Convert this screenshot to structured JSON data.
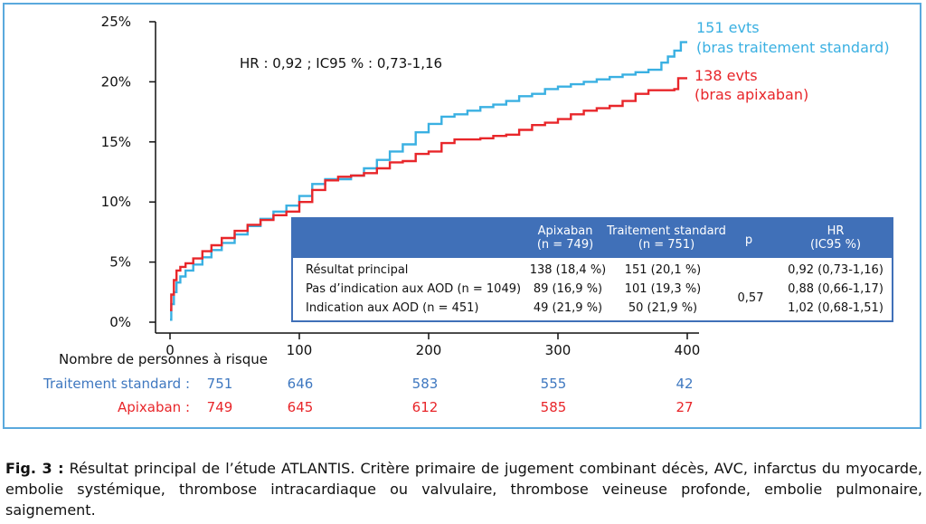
{
  "chart_data": {
    "type": "line",
    "x_range": [
      0,
      400
    ],
    "y_range": [
      0,
      25
    ],
    "y_ticks": [
      "0%",
      "5%",
      "10%",
      "15%",
      "20%",
      "25%"
    ],
    "y_tick_values": [
      0,
      5,
      10,
      15,
      20,
      25
    ],
    "x_ticks": [
      "0",
      "100",
      "200",
      "300",
      "400"
    ],
    "x_tick_values": [
      0,
      100,
      200,
      300,
      400
    ],
    "annotation": "HR : 0,92 ; IC95 % : 0,73-1,16",
    "colors": {
      "standard": "#3ab0e2",
      "apixaban": "#e8262a",
      "table_header": "#4070b8",
      "risk_standard": "#3f78c0"
    },
    "series": [
      {
        "key": "standard",
        "label_line1": "151 evts",
        "label_line2": "(bras traitement standard)",
        "x": [
          0,
          1,
          3,
          5,
          8,
          12,
          18,
          25,
          32,
          40,
          50,
          60,
          70,
          80,
          90,
          100,
          110,
          120,
          130,
          140,
          150,
          160,
          170,
          180,
          190,
          200,
          210,
          220,
          230,
          240,
          250,
          260,
          270,
          280,
          290,
          300,
          310,
          320,
          330,
          340,
          350,
          360,
          370,
          380,
          385,
          390,
          395,
          400
        ],
        "y": [
          0.2,
          1.5,
          2.5,
          3.3,
          3.8,
          4.3,
          4.8,
          5.4,
          6.0,
          6.6,
          7.3,
          8.0,
          8.6,
          9.2,
          9.7,
          10.5,
          11.5,
          11.9,
          11.9,
          12.2,
          12.8,
          13.5,
          14.2,
          14.8,
          15.8,
          16.5,
          17.1,
          17.3,
          17.6,
          17.9,
          18.1,
          18.4,
          18.8,
          19.0,
          19.4,
          19.6,
          19.8,
          20.0,
          20.2,
          20.4,
          20.6,
          20.8,
          21.0,
          21.6,
          22.1,
          22.6,
          23.3,
          23.3
        ]
      },
      {
        "key": "apixaban",
        "label_line1": "138 evts",
        "label_line2": "(bras apixaban)",
        "x": [
          0,
          1,
          3,
          5,
          8,
          12,
          18,
          25,
          32,
          40,
          50,
          60,
          70,
          80,
          90,
          100,
          110,
          120,
          130,
          140,
          150,
          160,
          170,
          180,
          190,
          200,
          210,
          220,
          230,
          240,
          250,
          260,
          270,
          280,
          290,
          300,
          310,
          320,
          330,
          340,
          350,
          360,
          370,
          380,
          390,
          393,
          396,
          400
        ],
        "y": [
          1.0,
          2.3,
          3.5,
          4.3,
          4.6,
          4.9,
          5.3,
          5.9,
          6.4,
          7.0,
          7.6,
          8.1,
          8.5,
          8.9,
          9.2,
          10.0,
          11.0,
          11.8,
          12.1,
          12.2,
          12.4,
          12.8,
          13.3,
          13.4,
          14.0,
          14.2,
          14.9,
          15.2,
          15.2,
          15.3,
          15.5,
          15.6,
          16.0,
          16.4,
          16.6,
          16.9,
          17.3,
          17.6,
          17.8,
          18.0,
          18.4,
          19.0,
          19.3,
          19.3,
          19.4,
          20.3,
          20.3,
          20.3
        ]
      }
    ]
  },
  "table": {
    "headers": {
      "apixaban_l1": "Apixaban",
      "apixaban_l2": "(n = 749)",
      "standard_l1": "Traitement standard",
      "standard_l2": "(n = 751)",
      "p": "p",
      "hr_l1": "HR",
      "hr_l2": "(IC95 %)"
    },
    "rows": [
      {
        "label": "Résultat principal",
        "apixaban": "138 (18,4 %)",
        "standard": "151 (20,1 %)",
        "hr": "0,92 (0,73-1,16)"
      },
      {
        "label": "Pas d’indication aux AOD (n = 1049)",
        "apixaban": "89 (16,9 %)",
        "standard": "101 (19,3 %)",
        "hr": "0,88 (0,66-1,17)"
      },
      {
        "label": "Indication aux AOD (n = 451)",
        "apixaban": "49 (21,9 %)",
        "standard": "50 (21,9 %)",
        "hr": "1,02 (0,68-1,51)"
      }
    ],
    "p_value": "0,57"
  },
  "risk": {
    "title": "Nombre de personnes à risque",
    "standard_label": "Traitement standard :",
    "standard_values": [
      "751",
      "646",
      "583",
      "555",
      "42"
    ],
    "apixaban_label": "Apixaban :",
    "apixaban_values": [
      "749",
      "645",
      "612",
      "585",
      "27"
    ]
  },
  "caption": {
    "fig": "Fig. 3 :",
    "text": "Résultat principal de l’étude ATLANTIS. Critère primaire de jugement combinant décès, AVC, infarctus du myocarde, embolie systémique, thrombose intracardiaque ou valvulaire, thrombose veineuse profonde, embolie pulmonaire, saignement."
  }
}
